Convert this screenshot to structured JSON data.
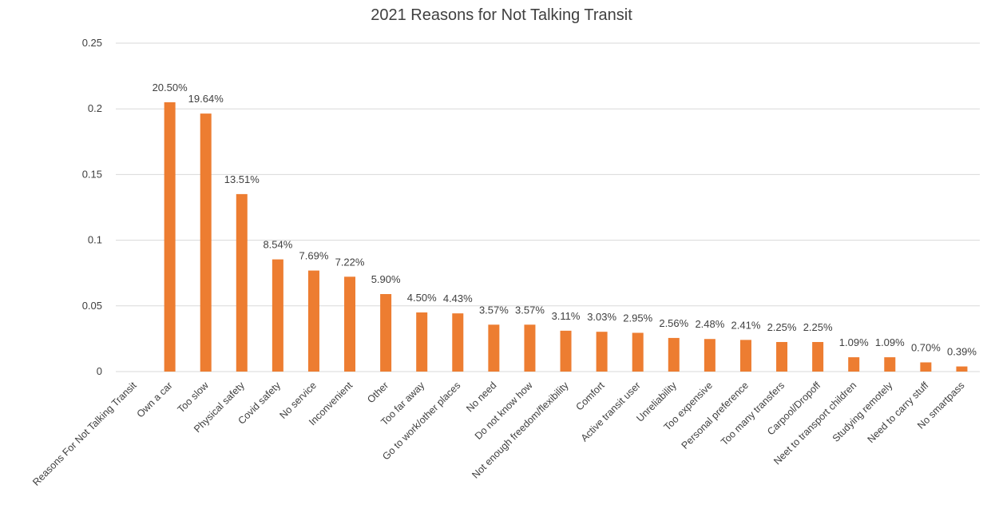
{
  "chart_data": {
    "type": "bar",
    "title": "2021 Reasons for Not Talking Transit",
    "xlabel": "",
    "ylabel": "",
    "ylim": [
      0,
      0.25
    ],
    "yticks": [
      "0",
      "0.05",
      "0.1",
      "0.15",
      "0.2",
      "0.25"
    ],
    "ytick_values": [
      0,
      0.05,
      0.1,
      0.15,
      0.2,
      0.25
    ],
    "grid": true,
    "legend": "none",
    "bar_color": "#ED7D31",
    "categories": [
      "Reasons For Not Talking Transit",
      "Own a car",
      "Too slow",
      "Physical safety",
      "Covid safety",
      "No service",
      "Inconvenient",
      "Other",
      "Too far away",
      "Go to work/other places",
      "No need",
      "Do not know how",
      "Not enough freedom/flexibility",
      "Comfort",
      "Active transit user",
      "Unreliability",
      "Too expensive",
      "Personal preference",
      "Too many transfers",
      "Carpool/Dropoff",
      "Neet to transport children",
      "Studying remotely",
      "Need to carry stuff",
      "No smartpass"
    ],
    "values": [
      null,
      0.205,
      0.1964,
      0.1351,
      0.0854,
      0.0769,
      0.0722,
      0.059,
      0.045,
      0.0443,
      0.0357,
      0.0357,
      0.0311,
      0.0303,
      0.0295,
      0.0256,
      0.0248,
      0.0241,
      0.0225,
      0.0225,
      0.0109,
      0.0109,
      0.007,
      0.0039
    ],
    "data_labels": [
      "",
      "20.50%",
      "19.64%",
      "13.51%",
      "8.54%",
      "7.69%",
      "7.22%",
      "5.90%",
      "4.50%",
      "4.43%",
      "3.57%",
      "3.57%",
      "3.11%",
      "3.03%",
      "2.95%",
      "2.56%",
      "2.48%",
      "2.41%",
      "2.25%",
      "2.25%",
      "1.09%",
      "1.09%",
      "0.70%",
      "0.39%"
    ]
  }
}
